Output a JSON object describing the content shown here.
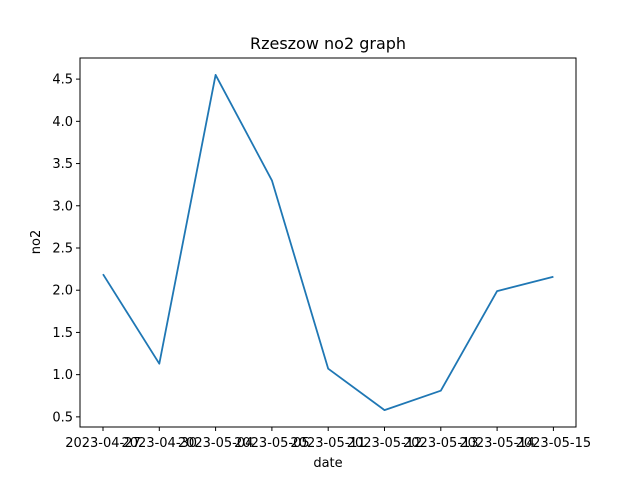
{
  "chart_data": {
    "type": "line",
    "title": "Rzeszow no2 graph",
    "xlabel": "date",
    "ylabel": "no2",
    "x": [
      "2023-04-27",
      "2023-04-30",
      "2023-05-04",
      "2023-05-05",
      "2023-05-11",
      "2023-05-12",
      "2023-05-13",
      "2023-05-14",
      "2023-05-15"
    ],
    "x_tick_labels": [
      "2023-04-27",
      "2023-04-30",
      "2023-05-04",
      "2023-05-05",
      "2023-05-11",
      "2023-05-12",
      "2023-05-13",
      "2023-05-14",
      "2023-05-15"
    ],
    "series": [
      {
        "values": [
          2.19,
          1.13,
          4.55,
          3.3,
          1.07,
          0.58,
          0.81,
          1.99,
          2.16
        ]
      }
    ],
    "yticks": [
      "0.5",
      "1.0",
      "1.5",
      "2.0",
      "2.5",
      "3.0",
      "3.5",
      "4.0",
      "4.5"
    ],
    "ylim": [
      0.38,
      4.75
    ],
    "grid": false,
    "line_color": "#1f77b4"
  }
}
